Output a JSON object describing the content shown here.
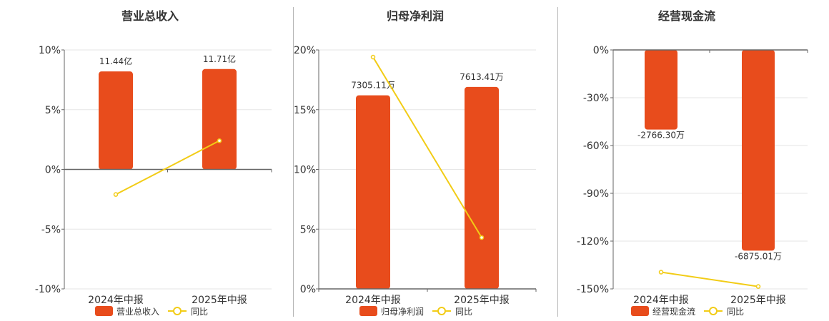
{
  "colors": {
    "bar": "#e84c1c",
    "line": "#f2cc16",
    "grid": "#e6e6e6",
    "axis": "#666666",
    "divider": "#b5b5b5"
  },
  "chart_data": [
    {
      "type": "bar",
      "title": "营业总收入",
      "categories": [
        "2024年中报",
        "2025年中报"
      ],
      "ylim": [
        -10,
        10
      ],
      "yticks": [
        10,
        5,
        0,
        -5,
        -10
      ],
      "ytick_labels": [
        "10%",
        "5%",
        "0%",
        "-5%",
        "-10%"
      ],
      "series": [
        {
          "name": "营业总收入",
          "kind": "bar",
          "values": [
            8.2,
            8.4
          ],
          "labels": [
            "11.44亿",
            "11.71亿"
          ]
        },
        {
          "name": "同比",
          "kind": "line",
          "values": [
            -2.1,
            2.4
          ]
        }
      ],
      "legend": {
        "position": "bottom",
        "items": [
          "营业总收入",
          "同比"
        ]
      },
      "grid": true
    },
    {
      "type": "bar",
      "title": "归母净利润",
      "categories": [
        "2024年中报",
        "2025年中报"
      ],
      "ylim": [
        0,
        20
      ],
      "yticks": [
        20,
        15,
        10,
        5,
        0
      ],
      "ytick_labels": [
        "20%",
        "15%",
        "10%",
        "5%",
        "0%"
      ],
      "series": [
        {
          "name": "归母净利润",
          "kind": "bar",
          "values": [
            16.2,
            16.9
          ],
          "labels": [
            "7305.11万",
            "7613.41万"
          ]
        },
        {
          "name": "同比",
          "kind": "line",
          "values": [
            19.4,
            4.3
          ]
        }
      ],
      "legend": {
        "position": "bottom",
        "items": [
          "归母净利润",
          "同比"
        ]
      },
      "grid": true
    },
    {
      "type": "bar",
      "title": "经营现金流",
      "categories": [
        "2024年中报",
        "2025年中报"
      ],
      "ylim": [
        -150,
        0
      ],
      "yticks": [
        0,
        -30,
        -60,
        -90,
        -120,
        -150
      ],
      "ytick_labels": [
        "0%",
        "-30%",
        "-60%",
        "-90%",
        "-120%",
        "-150%"
      ],
      "series": [
        {
          "name": "经营现金流",
          "kind": "bar",
          "values": [
            -50,
            -126
          ],
          "labels": [
            "-2766.30万",
            "-6875.01万"
          ]
        },
        {
          "name": "同比",
          "kind": "line",
          "values": [
            -139.5,
            -148.5
          ]
        }
      ],
      "legend": {
        "position": "bottom",
        "items": [
          "经营现金流",
          "同比"
        ]
      },
      "grid": true
    }
  ]
}
